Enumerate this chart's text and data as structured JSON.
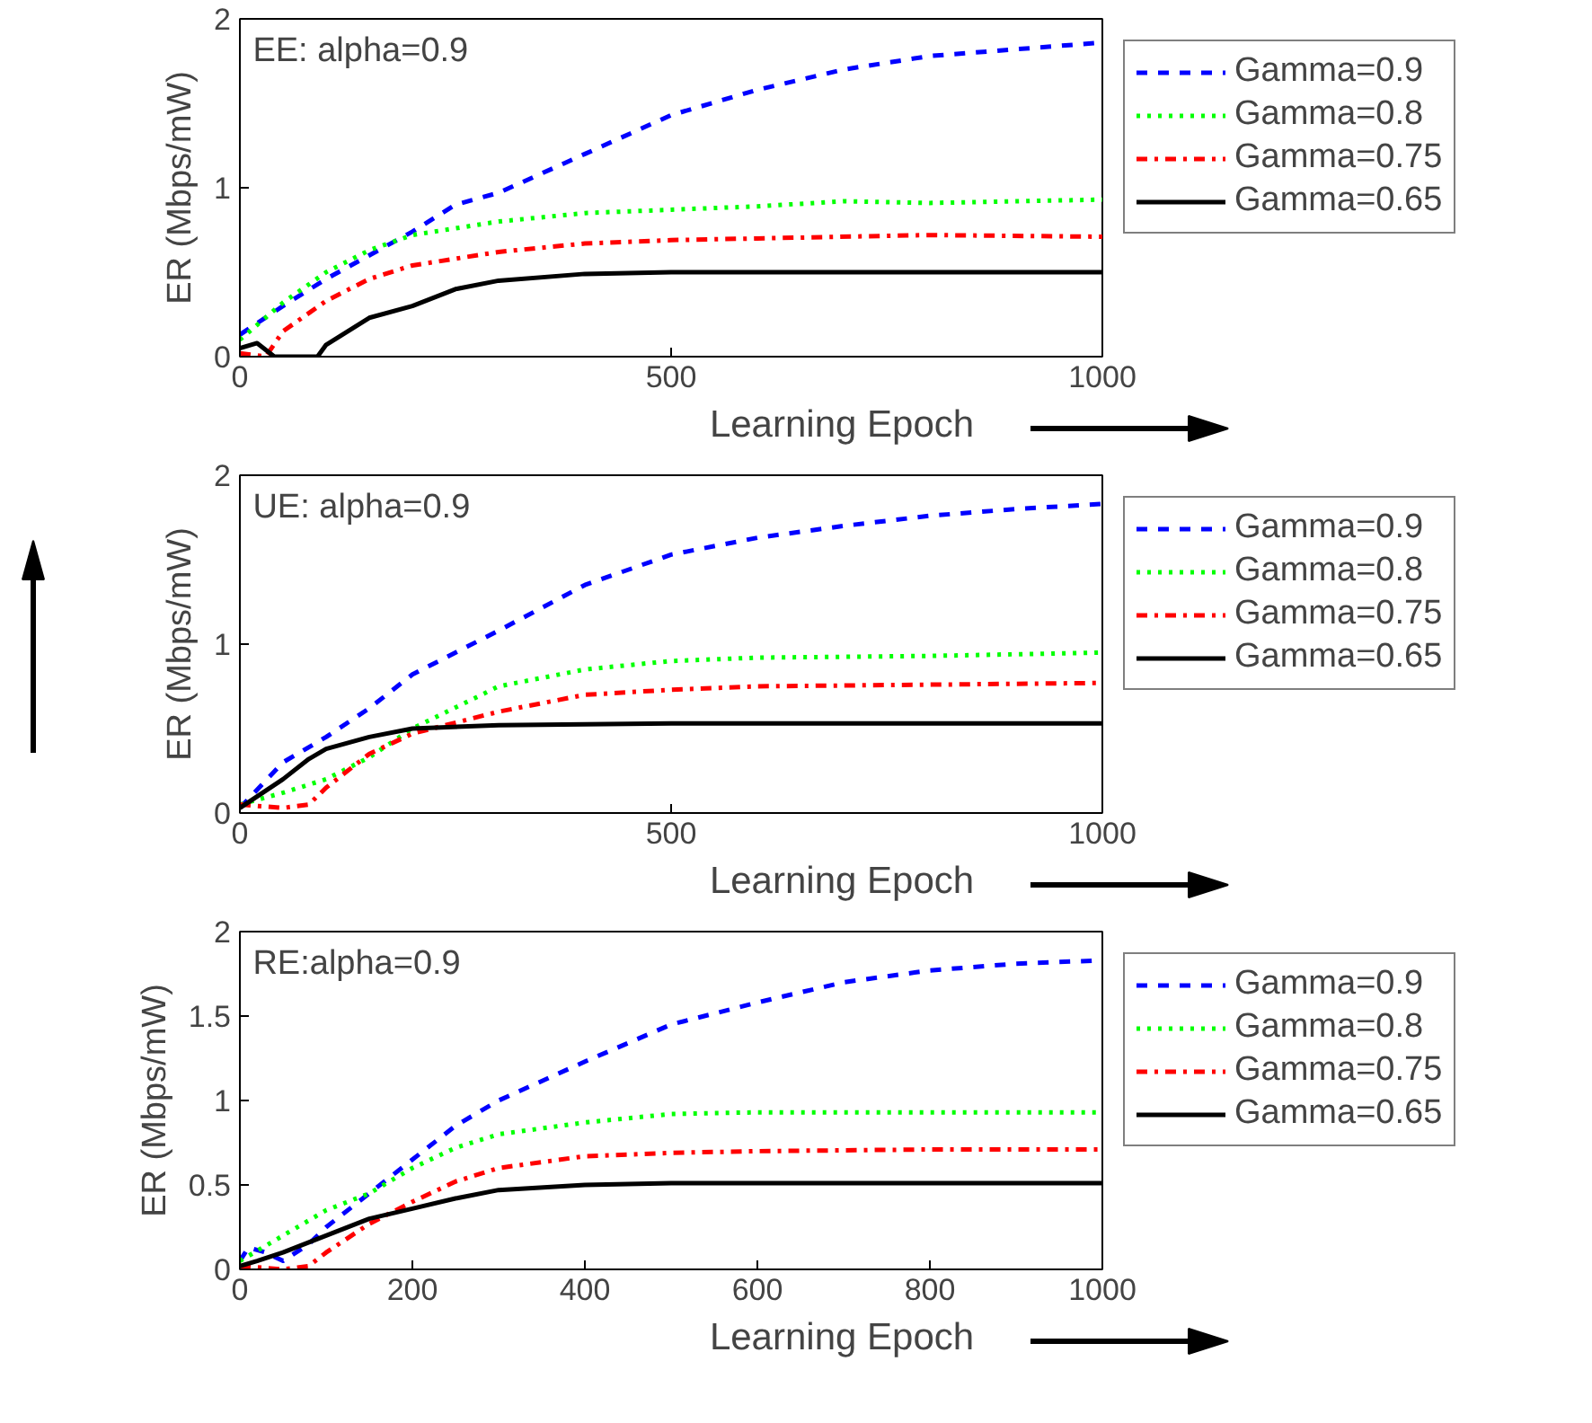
{
  "chart_data": [
    {
      "type": "line",
      "xlabel": "Learning Epoch",
      "ylabel": "ER (Mbps/mW)",
      "annotations": [
        "EE: alpha=0.9"
      ],
      "xlim": [
        0,
        1000
      ],
      "xticks": [
        0,
        500,
        1000
      ],
      "ylim": [
        0,
        2
      ],
      "yticks": [
        0,
        1,
        2
      ],
      "grid": false,
      "legend": "right",
      "marker": "none",
      "series": [
        {
          "name": "Gamma=0.9",
          "color": "#0000ff",
          "line_style": "dashed",
          "x": [
            0,
            50,
            100,
            150,
            200,
            250,
            300,
            400,
            500,
            600,
            700,
            800,
            900,
            1000
          ],
          "values": [
            0.13,
            0.3,
            0.46,
            0.6,
            0.74,
            0.9,
            0.97,
            1.2,
            1.43,
            1.58,
            1.7,
            1.78,
            1.82,
            1.86
          ]
        },
        {
          "name": "Gamma=0.8",
          "color": "#00ff00",
          "line_style": "dotted",
          "x": [
            0,
            50,
            100,
            150,
            200,
            300,
            400,
            500,
            600,
            700,
            800,
            1000
          ],
          "values": [
            0.1,
            0.32,
            0.5,
            0.63,
            0.72,
            0.8,
            0.85,
            0.87,
            0.89,
            0.92,
            0.91,
            0.93
          ]
        },
        {
          "name": "Gamma=0.75",
          "color": "#ff0000",
          "line_style": "dashdot",
          "x": [
            0,
            30,
            50,
            100,
            150,
            200,
            300,
            400,
            500,
            600,
            800,
            1000
          ],
          "values": [
            0.02,
            0.0,
            0.15,
            0.33,
            0.46,
            0.54,
            0.62,
            0.67,
            0.69,
            0.7,
            0.72,
            0.71
          ]
        },
        {
          "name": "Gamma=0.65",
          "color": "#000000",
          "line_style": "solid",
          "x": [
            0,
            20,
            40,
            90,
            100,
            150,
            200,
            250,
            300,
            400,
            500,
            700,
            1000
          ],
          "values": [
            0.05,
            0.08,
            0.0,
            0.0,
            0.07,
            0.23,
            0.3,
            0.4,
            0.45,
            0.49,
            0.5,
            0.5,
            0.5
          ]
        }
      ]
    },
    {
      "type": "line",
      "xlabel": "Learning Epoch",
      "ylabel": "ER (Mbps/mW)",
      "annotations": [
        "UE: alpha=0.9"
      ],
      "xlim": [
        0,
        1000
      ],
      "xticks": [
        0,
        500,
        1000
      ],
      "ylim": [
        0,
        2
      ],
      "yticks": [
        0,
        1,
        2
      ],
      "grid": false,
      "legend": "right",
      "marker": "none",
      "series": [
        {
          "name": "Gamma=0.9",
          "color": "#0000ff",
          "line_style": "dashed",
          "x": [
            0,
            50,
            100,
            150,
            200,
            300,
            400,
            500,
            600,
            700,
            800,
            900,
            1000
          ],
          "values": [
            0.03,
            0.3,
            0.45,
            0.62,
            0.82,
            1.08,
            1.35,
            1.53,
            1.63,
            1.7,
            1.76,
            1.8,
            1.83
          ]
        },
        {
          "name": "Gamma=0.8",
          "color": "#00ff00",
          "line_style": "dotted",
          "x": [
            0,
            50,
            100,
            150,
            200,
            300,
            400,
            500,
            600,
            800,
            1000
          ],
          "values": [
            0.05,
            0.12,
            0.2,
            0.33,
            0.5,
            0.75,
            0.85,
            0.9,
            0.92,
            0.93,
            0.95
          ]
        },
        {
          "name": "Gamma=0.75",
          "color": "#ff0000",
          "line_style": "dashdot",
          "x": [
            0,
            50,
            80,
            100,
            150,
            200,
            300,
            400,
            500,
            600,
            800,
            1000
          ],
          "values": [
            0.05,
            0.03,
            0.05,
            0.15,
            0.35,
            0.47,
            0.6,
            0.7,
            0.73,
            0.75,
            0.76,
            0.77
          ]
        },
        {
          "name": "Gamma=0.65",
          "color": "#000000",
          "line_style": "solid",
          "x": [
            0,
            50,
            80,
            100,
            150,
            200,
            300,
            500,
            1000
          ],
          "values": [
            0.03,
            0.2,
            0.32,
            0.38,
            0.45,
            0.5,
            0.52,
            0.53,
            0.53
          ]
        }
      ]
    },
    {
      "type": "line",
      "xlabel": "Learning Epoch",
      "ylabel": "ER (Mbps/mW)",
      "annotations": [
        "RE:alpha=0.9"
      ],
      "xlim": [
        0,
        1000
      ],
      "xticks": [
        0,
        200,
        400,
        600,
        800,
        1000
      ],
      "ylim": [
        0,
        2
      ],
      "yticks": [
        0,
        0.5,
        1,
        1.5,
        2
      ],
      "grid": false,
      "legend": "right",
      "marker": "none",
      "series": [
        {
          "name": "Gamma=0.9",
          "color": "#0000ff",
          "line_style": "dashed",
          "x": [
            0,
            10,
            30,
            50,
            80,
            100,
            150,
            200,
            250,
            300,
            400,
            500,
            600,
            700,
            800,
            900,
            1000
          ],
          "values": [
            0.05,
            0.13,
            0.1,
            0.05,
            0.15,
            0.25,
            0.45,
            0.65,
            0.85,
            1.0,
            1.23,
            1.45,
            1.58,
            1.7,
            1.77,
            1.81,
            1.83
          ]
        },
        {
          "name": "Gamma=0.8",
          "color": "#00ff00",
          "line_style": "dotted",
          "x": [
            0,
            50,
            100,
            150,
            200,
            250,
            300,
            400,
            500,
            600,
            1000
          ],
          "values": [
            0.05,
            0.2,
            0.35,
            0.45,
            0.6,
            0.72,
            0.8,
            0.87,
            0.92,
            0.93,
            0.93
          ]
        },
        {
          "name": "Gamma=0.75",
          "color": "#ff0000",
          "line_style": "dashdot",
          "x": [
            0,
            50,
            80,
            100,
            150,
            200,
            250,
            300,
            400,
            500,
            600,
            800,
            1000
          ],
          "values": [
            0.02,
            0.0,
            0.02,
            0.1,
            0.27,
            0.4,
            0.52,
            0.6,
            0.67,
            0.69,
            0.7,
            0.71,
            0.71
          ]
        },
        {
          "name": "Gamma=0.65",
          "color": "#000000",
          "line_style": "solid",
          "x": [
            0,
            20,
            50,
            100,
            150,
            200,
            250,
            300,
            400,
            500,
            1000
          ],
          "values": [
            0.02,
            0.05,
            0.1,
            0.2,
            0.3,
            0.36,
            0.42,
            0.47,
            0.5,
            0.51,
            0.51
          ]
        }
      ]
    }
  ]
}
